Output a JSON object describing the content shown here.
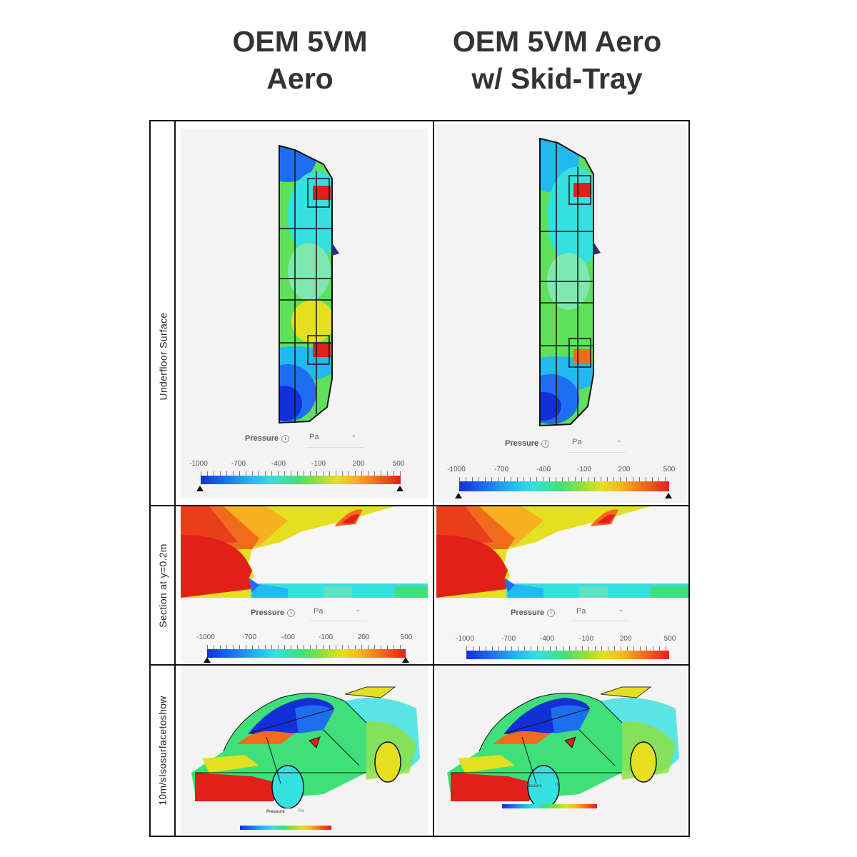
{
  "columns": [
    {
      "title": "OEM 5VM\nAero"
    },
    {
      "title": "OEM 5VM Aero\nw/ Skid-Tray"
    }
  ],
  "rows": [
    {
      "label": "Underfloor Surface"
    },
    {
      "label": "Section at y=0.2m"
    },
    {
      "label_words": [
        "10m/s",
        "Isosurface",
        "to",
        "show"
      ]
    }
  ],
  "legend": {
    "quantity": "Pressure",
    "unit": "Pa",
    "ticks": [
      "-1000",
      "-700",
      "-400",
      "-100",
      "200",
      "500"
    ]
  },
  "colors": {
    "low": "#1230d8",
    "mid_low": "#22b8f0",
    "mid": "#3fe07a",
    "mid_high": "#e4e020",
    "high": "#e2201a"
  }
}
